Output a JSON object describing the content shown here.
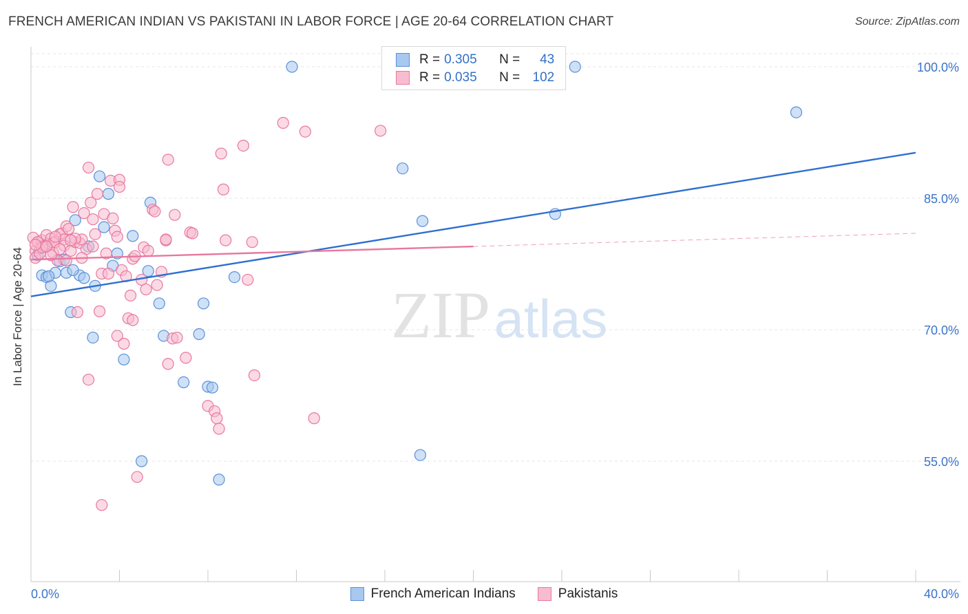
{
  "title": "FRENCH AMERICAN INDIAN VS PAKISTANI IN LABOR FORCE | AGE 20-64 CORRELATION CHART",
  "source": "Source: ZipAtlas.com",
  "watermark": {
    "zip": "ZIP",
    "atlas": "atlas"
  },
  "legend": {
    "r_label": "R =",
    "n_label": "N =",
    "rows": [
      {
        "r": "0.305",
        "n": "43",
        "fill": "#a8c8f0",
        "stroke": "#5b8fd6",
        "text_color": "#3070c8"
      },
      {
        "r": "0.035",
        "n": "102",
        "fill": "#f8bcd0",
        "stroke": "#e7789e",
        "text_color": "#3070c8"
      }
    ]
  },
  "bottom_legend": [
    {
      "label": "French American Indians",
      "fill": "#a8c8f0",
      "stroke": "#5b8fd6"
    },
    {
      "label": "Pakistanis",
      "fill": "#f8bcd0",
      "stroke": "#e7789e"
    }
  ],
  "chart_data": {
    "type": "scatter",
    "title": "FRENCH AMERICAN INDIAN VS PAKISTANI IN LABOR FORCE | AGE 20-64 CORRELATION CHART",
    "xlabel": "",
    "ylabel": "In Labor Force | Age 20-64",
    "xlim": [
      0,
      40
    ],
    "ylim": [
      40,
      101
    ],
    "x_tick_labels": [
      "0.0%",
      "40.0%"
    ],
    "y_ticks": [
      55,
      70,
      85,
      100
    ],
    "y_tick_labels": [
      "55.0%",
      "70.0%",
      "85.0%",
      "100.0%"
    ],
    "grid": true,
    "series": [
      {
        "name": "French American Indians",
        "color": "#5b8fd6",
        "fill": "#a8c8f0",
        "trend": {
          "x": [
            0,
            40
          ],
          "y": [
            73.8,
            90.2
          ],
          "style": "solid",
          "color": "#2e6fd0"
        },
        "points": [
          [
            0.3,
            78.5
          ],
          [
            0.5,
            76.2
          ],
          [
            0.7,
            76.0
          ],
          [
            0.9,
            75.0
          ],
          [
            1.1,
            76.5
          ],
          [
            1.3,
            77.8
          ],
          [
            1.5,
            78.0
          ],
          [
            1.8,
            72.0
          ],
          [
            2.0,
            82.5
          ],
          [
            2.2,
            76.2
          ],
          [
            2.4,
            75.9
          ],
          [
            2.6,
            79.5
          ],
          [
            2.8,
            69.1
          ],
          [
            2.9,
            75.0
          ],
          [
            3.1,
            87.5
          ],
          [
            3.3,
            81.7
          ],
          [
            3.5,
            85.5
          ],
          [
            3.7,
            77.3
          ],
          [
            3.9,
            78.7
          ],
          [
            4.2,
            66.6
          ],
          [
            4.6,
            80.7
          ],
          [
            5.0,
            55.0
          ],
          [
            5.3,
            76.7
          ],
          [
            5.4,
            84.5
          ],
          [
            5.8,
            73.0
          ],
          [
            6.0,
            69.3
          ],
          [
            6.9,
            64.0
          ],
          [
            7.6,
            69.5
          ],
          [
            7.8,
            73.0
          ],
          [
            8.0,
            63.5
          ],
          [
            8.2,
            63.4
          ],
          [
            8.5,
            52.9
          ],
          [
            9.2,
            76.0
          ],
          [
            11.8,
            100.0
          ],
          [
            16.8,
            88.4
          ],
          [
            17.7,
            82.4
          ],
          [
            17.6,
            55.7
          ],
          [
            23.7,
            83.2
          ],
          [
            24.6,
            100.0
          ],
          [
            34.6,
            94.8
          ],
          [
            1.6,
            76.5
          ],
          [
            0.8,
            76.1
          ],
          [
            1.9,
            76.8
          ]
        ]
      },
      {
        "name": "Pakistanis",
        "color": "#e7789e",
        "fill": "#f8bcd0",
        "trend": {
          "x": [
            0,
            20
          ],
          "y": [
            78.0,
            79.5
          ],
          "style": "solid",
          "color": "#e7789e",
          "extension": {
            "x": [
              20,
              40
            ],
            "y": [
              79.5,
              81.0
            ],
            "style": "dashed"
          }
        },
        "points": [
          [
            0.1,
            80.5
          ],
          [
            0.2,
            79.0
          ],
          [
            0.2,
            78.2
          ],
          [
            0.3,
            80.0
          ],
          [
            0.4,
            79.3
          ],
          [
            0.4,
            78.7
          ],
          [
            0.5,
            80.2
          ],
          [
            0.6,
            79.6
          ],
          [
            0.7,
            80.8
          ],
          [
            0.8,
            79.8
          ],
          [
            0.9,
            80.4
          ],
          [
            1.0,
            79.9
          ],
          [
            1.0,
            78.8
          ],
          [
            1.1,
            80.0
          ],
          [
            1.2,
            77.9
          ],
          [
            1.3,
            80.9
          ],
          [
            1.4,
            81.0
          ],
          [
            1.5,
            80.3
          ],
          [
            1.5,
            79.6
          ],
          [
            1.6,
            81.8
          ],
          [
            1.6,
            77.9
          ],
          [
            1.7,
            81.5
          ],
          [
            1.8,
            79.0
          ],
          [
            1.9,
            84.0
          ],
          [
            2.0,
            80.0
          ],
          [
            2.1,
            72.0
          ],
          [
            2.2,
            79.9
          ],
          [
            2.3,
            80.3
          ],
          [
            2.4,
            83.3
          ],
          [
            2.5,
            79.2
          ],
          [
            2.6,
            88.5
          ],
          [
            2.6,
            64.3
          ],
          [
            2.7,
            84.5
          ],
          [
            2.8,
            82.6
          ],
          [
            2.9,
            80.9
          ],
          [
            3.0,
            85.5
          ],
          [
            3.1,
            72.1
          ],
          [
            3.2,
            76.4
          ],
          [
            3.3,
            83.2
          ],
          [
            3.4,
            78.7
          ],
          [
            3.5,
            76.4
          ],
          [
            3.6,
            87.0
          ],
          [
            3.7,
            82.7
          ],
          [
            3.8,
            81.3
          ],
          [
            3.9,
            69.3
          ],
          [
            4.0,
            87.1
          ],
          [
            4.1,
            76.8
          ],
          [
            4.2,
            68.4
          ],
          [
            4.3,
            76.1
          ],
          [
            4.4,
            71.3
          ],
          [
            4.5,
            73.9
          ],
          [
            4.6,
            78.1
          ],
          [
            4.6,
            71.1
          ],
          [
            4.7,
            78.4
          ],
          [
            4.8,
            53.2
          ],
          [
            5.0,
            75.7
          ],
          [
            5.1,
            79.4
          ],
          [
            5.2,
            74.6
          ],
          [
            5.3,
            79.0
          ],
          [
            5.5,
            83.7
          ],
          [
            5.7,
            75.1
          ],
          [
            5.9,
            76.6
          ],
          [
            6.1,
            80.2
          ],
          [
            6.2,
            89.4
          ],
          [
            6.2,
            66.1
          ],
          [
            6.4,
            69.0
          ],
          [
            6.5,
            83.1
          ],
          [
            6.6,
            69.1
          ],
          [
            7.0,
            66.8
          ],
          [
            7.2,
            81.1
          ],
          [
            7.3,
            81.0
          ],
          [
            8.0,
            61.3
          ],
          [
            8.3,
            60.7
          ],
          [
            8.4,
            59.9
          ],
          [
            8.5,
            58.7
          ],
          [
            8.6,
            90.1
          ],
          [
            8.7,
            86.0
          ],
          [
            8.8,
            80.2
          ],
          [
            9.6,
            91.0
          ],
          [
            9.8,
            75.7
          ],
          [
            10.0,
            80.0
          ],
          [
            10.1,
            64.8
          ],
          [
            11.4,
            93.6
          ],
          [
            12.4,
            92.6
          ],
          [
            12.8,
            59.9
          ],
          [
            15.8,
            92.7
          ],
          [
            3.2,
            50.0
          ],
          [
            6.1,
            80.3
          ],
          [
            0.3,
            80.0
          ],
          [
            0.5,
            79.4
          ],
          [
            1.1,
            80.6
          ],
          [
            2.0,
            80.4
          ],
          [
            2.8,
            79.5
          ],
          [
            0.9,
            78.5
          ],
          [
            1.3,
            79.2
          ],
          [
            4.0,
            86.3
          ],
          [
            3.9,
            80.6
          ],
          [
            0.2,
            79.7
          ],
          [
            1.8,
            80.2
          ],
          [
            5.6,
            83.5
          ],
          [
            0.7,
            79.5
          ],
          [
            2.3,
            78.2
          ]
        ]
      }
    ]
  }
}
